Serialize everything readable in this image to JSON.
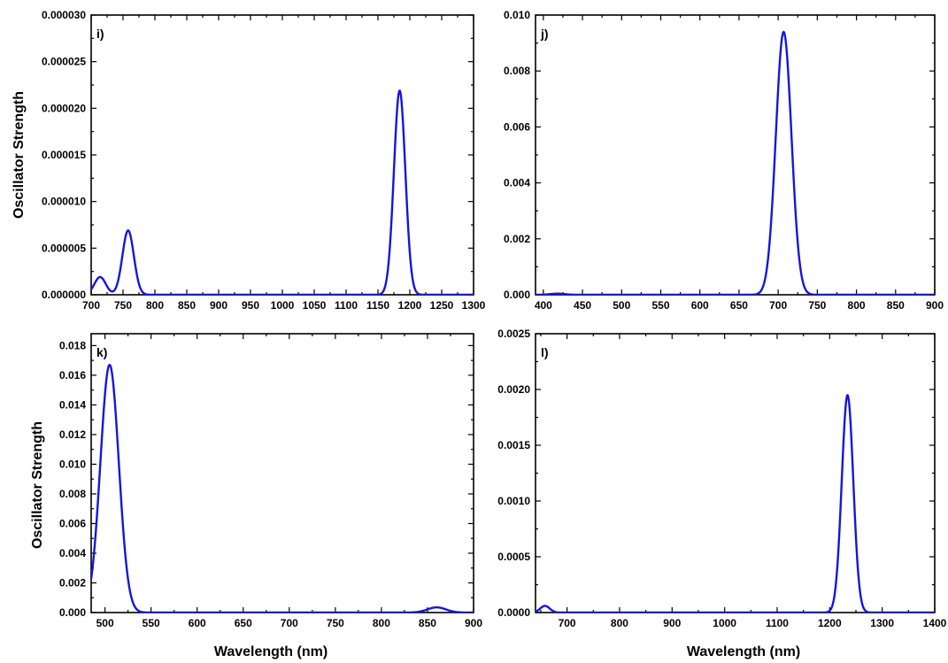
{
  "figure": {
    "ylabel_top": "Oscillator Strength",
    "ylabel_bottom": "Oscillator Strength",
    "xlabel_left": "Wavelength (nm)",
    "xlabel_right": "Wavelength (nm)",
    "line_color": "#1515e0"
  },
  "chart_data": [
    {
      "panel": "i)",
      "type": "line",
      "xlim": [
        700,
        1300
      ],
      "ylim": [
        0,
        3e-05
      ],
      "xticks": [
        700,
        750,
        800,
        850,
        900,
        950,
        1000,
        1050,
        1100,
        1150,
        1200,
        1250,
        1300
      ],
      "xtick_labels": [
        "700",
        "750",
        "800",
        "850",
        "900",
        "950",
        "1000",
        "1050",
        "1100",
        "1150",
        "1200",
        "1250",
        "1300"
      ],
      "yticks": [
        0,
        5e-06,
        1e-05,
        1.5e-05,
        2e-05,
        2.5e-05,
        3e-05
      ],
      "ytick_labels": [
        "0.000000",
        "0.000005",
        "0.000010",
        "0.000015",
        "0.000020",
        "0.000025",
        "0.000030"
      ],
      "series": [
        {
          "peaks": [
            {
              "x": 714,
              "y": 1.9e-06,
              "sigma": 9
            },
            {
              "x": 758,
              "y": 6.9e-06,
              "sigma": 9
            },
            {
              "x": 1184,
              "y": 2.19e-05,
              "sigma": 9
            }
          ]
        }
      ]
    },
    {
      "panel": "j)",
      "type": "line",
      "xlim": [
        390,
        900
      ],
      "ylim": [
        0,
        0.01
      ],
      "xticks": [
        400,
        450,
        500,
        550,
        600,
        650,
        700,
        750,
        800,
        850,
        900
      ],
      "xtick_labels": [
        "400",
        "450",
        "500",
        "550",
        "600",
        "650",
        "700",
        "750",
        "800",
        "850",
        "900"
      ],
      "yticks": [
        0,
        0.002,
        0.004,
        0.006,
        0.008,
        0.01
      ],
      "ytick_labels": [
        "0.000",
        "0.002",
        "0.004",
        "0.006",
        "0.008",
        "0.010"
      ],
      "series": [
        {
          "peaks": [
            {
              "x": 418,
              "y": 4e-05,
              "sigma": 9
            },
            {
              "x": 707,
              "y": 0.0094,
              "sigma": 10
            }
          ]
        }
      ]
    },
    {
      "panel": "k)",
      "type": "line",
      "xlim": [
        485,
        900
      ],
      "ylim": [
        0,
        0.0188
      ],
      "xticks": [
        500,
        550,
        600,
        650,
        700,
        750,
        800,
        850,
        900
      ],
      "xtick_labels": [
        "500",
        "550",
        "600",
        "650",
        "700",
        "750",
        "800",
        "850",
        "900"
      ],
      "yticks": [
        0,
        0.002,
        0.004,
        0.006,
        0.008,
        0.01,
        0.012,
        0.014,
        0.016,
        0.018
      ],
      "ytick_labels": [
        "0.000",
        "0.002",
        "0.004",
        "0.006",
        "0.008",
        "0.010",
        "0.012",
        "0.014",
        "0.016",
        "0.018"
      ],
      "series": [
        {
          "peaks": [
            {
              "x": 505,
              "y": 0.0167,
              "sigma": 10
            },
            {
              "x": 860,
              "y": 0.00035,
              "sigma": 10
            }
          ]
        }
      ]
    },
    {
      "panel": "l)",
      "type": "line",
      "xlim": [
        640,
        1400
      ],
      "ylim": [
        0,
        0.0025
      ],
      "xticks": [
        700,
        800,
        900,
        1000,
        1100,
        1200,
        1300,
        1400
      ],
      "xtick_labels": [
        "700",
        "800",
        "900",
        "1000",
        "1100",
        "1200",
        "1300",
        "1400"
      ],
      "yticks": [
        0,
        0.0005,
        0.001,
        0.0015,
        0.002,
        0.0025
      ],
      "ytick_labels": [
        "0.0000",
        "0.0005",
        "0.0010",
        "0.0015",
        "0.0020",
        "0.0025"
      ],
      "series": [
        {
          "peaks": [
            {
              "x": 658,
              "y": 6e-05,
              "sigma": 9
            },
            {
              "x": 1234,
              "y": 0.00195,
              "sigma": 11
            }
          ]
        }
      ]
    }
  ]
}
